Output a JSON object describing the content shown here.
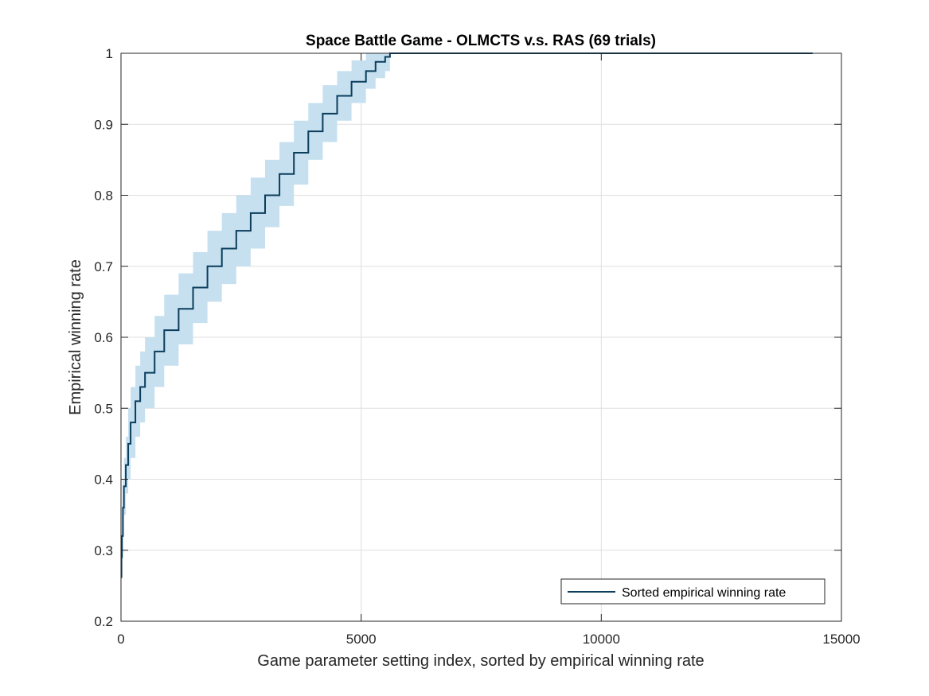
{
  "chart_data": {
    "type": "line",
    "title": "Space Battle Game - OLMCTS v.s. RAS (69 trials)",
    "xlabel": "Game parameter setting index, sorted by empirical winning rate",
    "ylabel": "Empirical winning rate",
    "xlim": [
      0,
      15000
    ],
    "ylim": [
      0.2,
      1
    ],
    "xticks": [
      0,
      5000,
      10000,
      15000
    ],
    "yticks": [
      0.2,
      0.3,
      0.4,
      0.5,
      0.6,
      0.7,
      0.8,
      0.9,
      1
    ],
    "xtick_labels": [
      "0",
      "5000",
      "10000",
      "15000"
    ],
    "ytick_labels": [
      "0.2",
      "0.3",
      "0.4",
      "0.5",
      "0.6",
      "0.7",
      "0.8",
      "0.9",
      "1"
    ],
    "grid": true,
    "legend": {
      "position": "bottom-right",
      "entries": [
        "Sorted empirical winning rate"
      ]
    },
    "series": [
      {
        "name": "Sorted empirical winning rate",
        "color": "#0b3d5c",
        "x": [
          0,
          10,
          20,
          40,
          60,
          100,
          150,
          200,
          300,
          400,
          500,
          700,
          900,
          1200,
          1500,
          1800,
          2100,
          2400,
          2700,
          3000,
          3300,
          3600,
          3900,
          4200,
          4500,
          4800,
          5100,
          5300,
          5500,
          5600,
          7000,
          9000,
          11000,
          13000,
          14400
        ],
        "y": [
          0.262,
          0.29,
          0.32,
          0.36,
          0.39,
          0.42,
          0.45,
          0.48,
          0.51,
          0.53,
          0.55,
          0.58,
          0.61,
          0.64,
          0.67,
          0.7,
          0.725,
          0.75,
          0.775,
          0.8,
          0.83,
          0.86,
          0.89,
          0.915,
          0.94,
          0.96,
          0.975,
          0.988,
          0.995,
          1.0,
          1.0,
          1.0,
          1.0,
          1.0,
          1.0
        ]
      }
    ],
    "confidence_band": {
      "color": "#c6e0f0",
      "x": [
        0,
        10,
        20,
        40,
        60,
        100,
        150,
        200,
        300,
        400,
        500,
        700,
        900,
        1200,
        1500,
        1800,
        2100,
        2400,
        2700,
        3000,
        3300,
        3600,
        3900,
        4200,
        4500,
        4800,
        5100,
        5300,
        5500,
        5600
      ],
      "lower": [
        0.262,
        0.27,
        0.29,
        0.32,
        0.35,
        0.38,
        0.4,
        0.43,
        0.46,
        0.48,
        0.5,
        0.53,
        0.56,
        0.59,
        0.62,
        0.65,
        0.675,
        0.7,
        0.725,
        0.755,
        0.785,
        0.815,
        0.85,
        0.875,
        0.905,
        0.93,
        0.95,
        0.965,
        0.975,
        0.99
      ],
      "upper": [
        0.27,
        0.31,
        0.35,
        0.4,
        0.43,
        0.46,
        0.5,
        0.53,
        0.56,
        0.58,
        0.6,
        0.63,
        0.66,
        0.69,
        0.72,
        0.75,
        0.775,
        0.8,
        0.825,
        0.85,
        0.875,
        0.905,
        0.93,
        0.955,
        0.975,
        0.99,
        1.0,
        1.0,
        1.0,
        1.0
      ]
    }
  }
}
